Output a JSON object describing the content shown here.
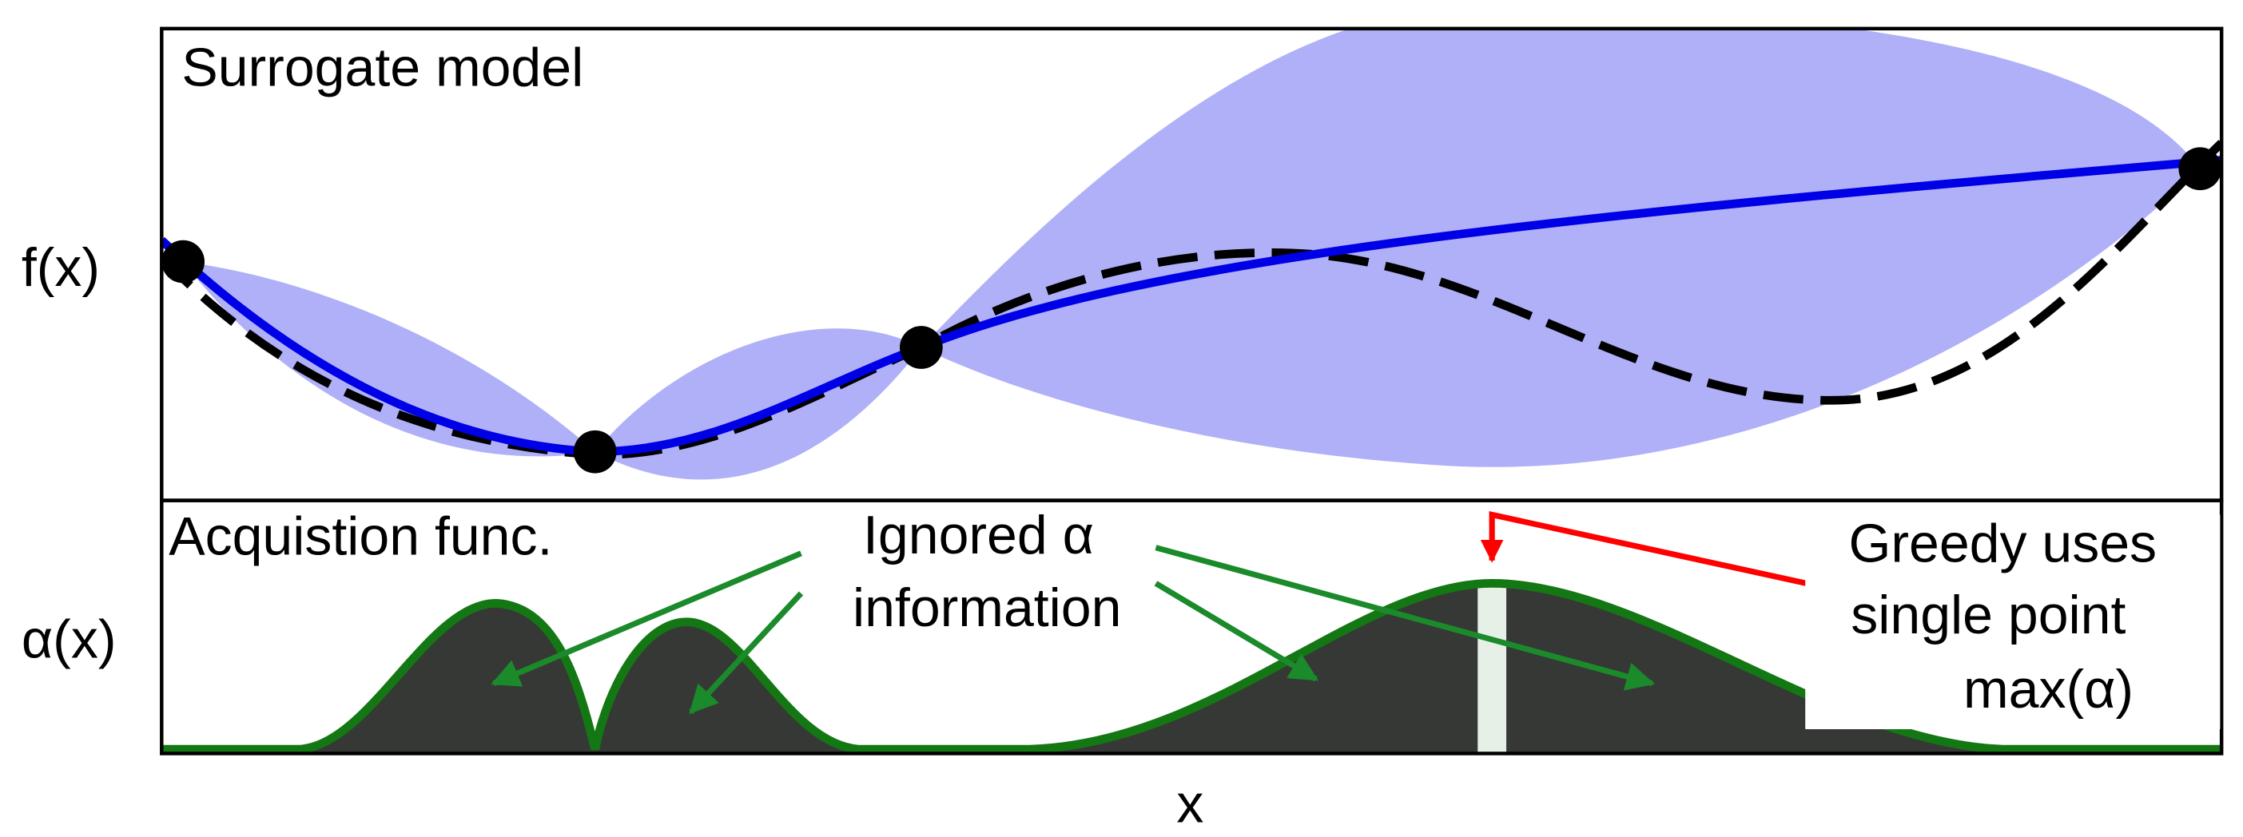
{
  "top_panel": {
    "title": "Surrogate model",
    "y_label": "f(x)"
  },
  "bottom_panel": {
    "title": "Acquistion func.",
    "y_label": "α(x)"
  },
  "annotations": {
    "ignored": [
      "Ignored α",
      "information"
    ],
    "greedy": [
      "Greedy uses",
      "single point",
      "max(α)"
    ]
  },
  "x_label": "x"
}
